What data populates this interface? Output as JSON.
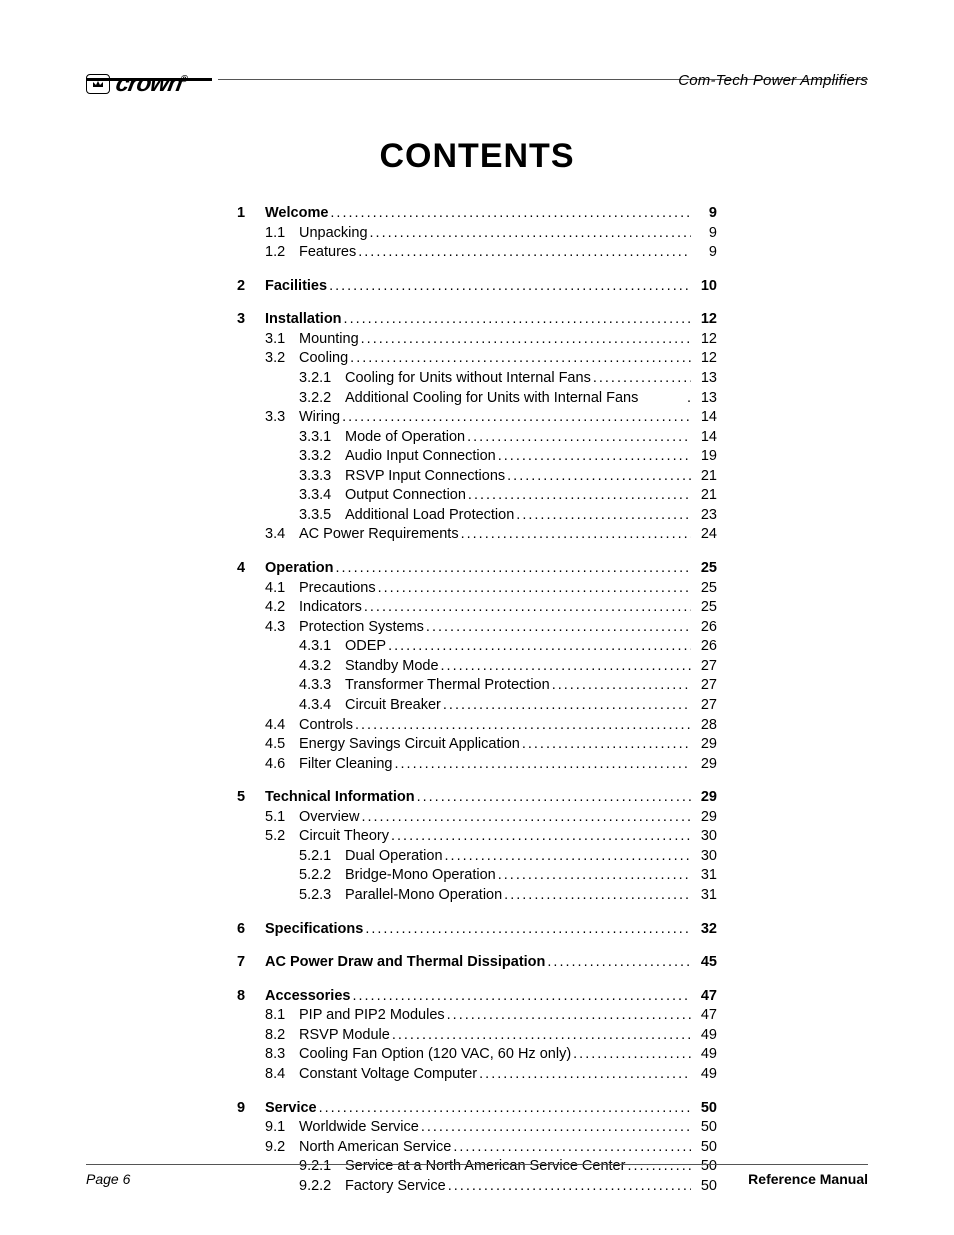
{
  "header": {
    "doc_title": "Com-Tech  Power Amplifiers",
    "logo_text": "crown",
    "logo_reg": "®"
  },
  "title": "CONTENTS",
  "footer": {
    "page_label": "Page 6",
    "manual_label": "Reference Manual"
  },
  "toc": [
    {
      "num": "1",
      "label": "Welcome",
      "page": "9",
      "children": [
        {
          "num": "1.1",
          "label": "Unpacking",
          "page": "9"
        },
        {
          "num": "1.2",
          "label": "Features",
          "page": "9"
        }
      ]
    },
    {
      "num": "2",
      "label": "Facilities",
      "page": "10",
      "children": []
    },
    {
      "num": "3",
      "label": "Installation",
      "page": "12",
      "children": [
        {
          "num": "3.1",
          "label": "Mounting",
          "page": "12"
        },
        {
          "num": "3.2",
          "label": "Cooling",
          "page": "12",
          "children": [
            {
              "num": "3.2.1",
              "label": "Cooling for Units without Internal Fans",
              "page": "13"
            },
            {
              "num": "3.2.2",
              "label": "Additional Cooling for Units with Internal Fans",
              "page": "13",
              "nodots": true
            }
          ]
        },
        {
          "num": "3.3",
          "label": "Wiring",
          "page": "14",
          "children": [
            {
              "num": "3.3.1",
              "label": "Mode of Operation",
              "page": "14"
            },
            {
              "num": "3.3.2",
              "label": "Audio Input Connection",
              "page": "19"
            },
            {
              "num": "3.3.3",
              "label": "RSVP Input Connections",
              "page": "21"
            },
            {
              "num": "3.3.4",
              "label": "Output Connection",
              "page": "21"
            },
            {
              "num": "3.3.5",
              "label": "Additional Load Protection",
              "page": "23"
            }
          ]
        },
        {
          "num": "3.4",
          "label": "AC Power Requirements",
          "page": "24"
        }
      ]
    },
    {
      "num": "4",
      "label": "Operation",
      "page": "25",
      "children": [
        {
          "num": "4.1",
          "label": "Precautions",
          "page": "25"
        },
        {
          "num": "4.2",
          "label": "Indicators",
          "page": "25"
        },
        {
          "num": "4.3",
          "label": "Protection Systems",
          "page": "26",
          "children": [
            {
              "num": "4.3.1",
              "label": "ODEP",
              "page": "26"
            },
            {
              "num": "4.3.2",
              "label": "Standby Mode",
              "page": "27"
            },
            {
              "num": "4.3.3",
              "label": "Transformer Thermal Protection",
              "page": "27"
            },
            {
              "num": "4.3.4",
              "label": "Circuit Breaker",
              "page": "27"
            }
          ]
        },
        {
          "num": "4.4",
          "label": "Controls",
          "page": "28"
        },
        {
          "num": "4.5",
          "label": "Energy Savings Circuit Application",
          "page": "29"
        },
        {
          "num": "4.6",
          "label": "Filter Cleaning",
          "page": "29"
        }
      ]
    },
    {
      "num": "5",
      "label": "Technical Information",
      "page": "29",
      "children": [
        {
          "num": "5.1",
          "label": "Overview",
          "page": "29"
        },
        {
          "num": "5.2",
          "label": "Circuit Theory",
          "page": "30",
          "children": [
            {
              "num": "5.2.1",
              "label": "Dual Operation",
              "page": "30"
            },
            {
              "num": "5.2.2",
              "label": "Bridge-Mono Operation",
              "page": "31"
            },
            {
              "num": "5.2.3",
              "label": "Parallel-Mono Operation",
              "page": "31"
            }
          ]
        }
      ]
    },
    {
      "num": "6",
      "label": "Specifications",
      "page": "32",
      "children": []
    },
    {
      "num": "7",
      "label": "AC Power Draw and Thermal Dissipation",
      "page": "45",
      "children": []
    },
    {
      "num": "8",
      "label": "Accessories",
      "page": "47",
      "children": [
        {
          "num": "8.1",
          "label": "PIP and PIP2 Modules",
          "page": "47"
        },
        {
          "num": "8.2",
          "label": "RSVP Module",
          "page": "49"
        },
        {
          "num": "8.3",
          "label": "Cooling Fan Option (120 VAC, 60 Hz only)",
          "page": "49"
        },
        {
          "num": "8.4",
          "label": "Constant Voltage Computer",
          "page": "49"
        }
      ]
    },
    {
      "num": "9",
      "label": "Service",
      "page": "50",
      "children": [
        {
          "num": "9.1",
          "label": "Worldwide Service",
          "page": "50"
        },
        {
          "num": "9.2",
          "label": "North American Service",
          "page": "50",
          "children": [
            {
              "num": "9.2.1",
              "label": "Service at a North American Service Center",
              "page": "50"
            },
            {
              "num": "9.2.2",
              "label": "Factory Service",
              "page": "50"
            }
          ]
        }
      ]
    }
  ]
}
